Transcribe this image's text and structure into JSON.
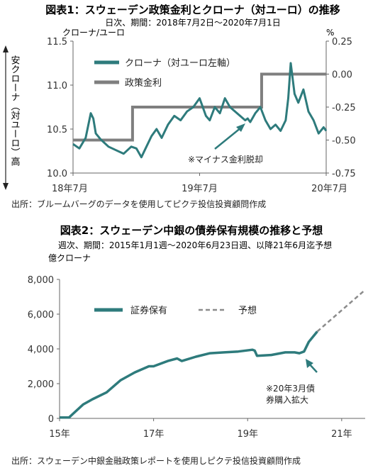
{
  "chart_data": [
    {
      "type": "line",
      "title": "図表1：スウェーデン政策金利とクローナ（対ユーロ）の推移",
      "subtitle": "日次、期間：2018年7月2日～2020年7月1日",
      "ylabel_left": "クローナ/ユーロ",
      "ylabel_right": "%",
      "left_axis_note": "安クローナ（対ユーロ）高",
      "x_ticks": [
        "18年7月",
        "19年7月",
        "20年7月"
      ],
      "x_range": [
        2018.5,
        2020.5
      ],
      "ylim_left": [
        10.0,
        11.5
      ],
      "yticks_left": [
        "10.0",
        "10.5",
        "11.0",
        "11.5"
      ],
      "ylim_right": [
        -0.75,
        0.25
      ],
      "yticks_right": [
        "-0.75",
        "-0.50",
        "-0.25",
        "0.00",
        "0.25"
      ],
      "series": [
        {
          "name": "クローナ（対ユーロ左軸）",
          "axis": "left",
          "color": "#2e7b7c",
          "x": [
            2018.5,
            2018.55,
            2018.6,
            2018.64,
            2018.66,
            2018.68,
            2018.72,
            2018.78,
            2018.84,
            2018.9,
            2018.96,
            2019.0,
            2019.04,
            2019.08,
            2019.12,
            2019.16,
            2019.2,
            2019.25,
            2019.3,
            2019.35,
            2019.4,
            2019.45,
            2019.5,
            2019.55,
            2019.58,
            2019.62,
            2019.66,
            2019.7,
            2019.74,
            2019.78,
            2019.82,
            2019.86,
            2019.88,
            2019.9,
            2019.94,
            2019.98,
            2020.02,
            2020.06,
            2020.1,
            2020.14,
            2020.18,
            2020.2,
            2020.22,
            2020.25,
            2020.28,
            2020.32,
            2020.36,
            2020.4,
            2020.44,
            2020.48,
            2020.5
          ],
          "y": [
            10.33,
            10.28,
            10.4,
            10.68,
            10.62,
            10.45,
            10.38,
            10.3,
            10.26,
            10.22,
            10.3,
            10.28,
            10.18,
            10.3,
            10.42,
            10.5,
            10.4,
            10.55,
            10.65,
            10.6,
            10.7,
            10.75,
            10.85,
            10.65,
            10.6,
            10.75,
            10.68,
            10.85,
            10.75,
            10.7,
            10.65,
            10.6,
            10.62,
            10.58,
            10.68,
            10.75,
            10.6,
            10.5,
            10.55,
            10.48,
            10.6,
            10.85,
            11.25,
            10.9,
            10.8,
            10.95,
            10.7,
            10.6,
            10.45,
            10.52,
            10.48
          ]
        },
        {
          "name": "政策金利",
          "axis": "right",
          "color": "#7f7f7f",
          "step": true,
          "x": [
            2018.5,
            2018.97,
            2019.99,
            2020.5
          ],
          "y": [
            -0.5,
            -0.25,
            0.0,
            0.0
          ]
        }
      ],
      "annotation": "※マイナス金利脱却",
      "source": "出所：ブルームバーグのデータを使用してピクテ投信投資顧問作成"
    },
    {
      "type": "line",
      "title": "図表2：スウェーデン中銀の債券保有規模の推移と予想",
      "subtitle": "週次、期間：2015年1月1週～2020年6月23日週、以降21年6月迄予想",
      "ylabel": "億クローナ",
      "x_ticks": [
        "15年",
        "17年",
        "19年",
        "21年"
      ],
      "x_range": [
        2015.0,
        2021.5
      ],
      "ylim": [
        0,
        8000
      ],
      "yticks": [
        "0",
        "2,000",
        "4,000",
        "6,000",
        "8,000"
      ],
      "series": [
        {
          "name": "証券保有",
          "color": "#2e7b7c",
          "x": [
            2015.0,
            2015.2,
            2015.3,
            2015.5,
            2015.7,
            2016.0,
            2016.3,
            2016.6,
            2016.9,
            2017.0,
            2017.3,
            2017.5,
            2017.6,
            2017.9,
            2018.2,
            2018.5,
            2018.8,
            2019.1,
            2019.15,
            2019.2,
            2019.5,
            2019.8,
            2020.0,
            2020.1,
            2020.2,
            2020.3,
            2020.48
          ],
          "y": [
            50,
            50,
            300,
            800,
            1100,
            1500,
            2200,
            2650,
            3000,
            3000,
            3300,
            3450,
            3300,
            3550,
            3750,
            3800,
            3850,
            3950,
            3900,
            3600,
            3650,
            3800,
            3800,
            3750,
            3850,
            4400,
            5000
          ]
        },
        {
          "name": "予想",
          "color": "#8c8c8c",
          "dashed": true,
          "x": [
            2020.48,
            2021.5
          ],
          "y": [
            5000,
            7400
          ]
        }
      ],
      "annotation_lines": [
        "※20年3月債",
        "券購入拡大"
      ],
      "source": "出所：スウェーデン中銀金融政策レポートを使用しピクテ投信投資顧問作成"
    }
  ]
}
